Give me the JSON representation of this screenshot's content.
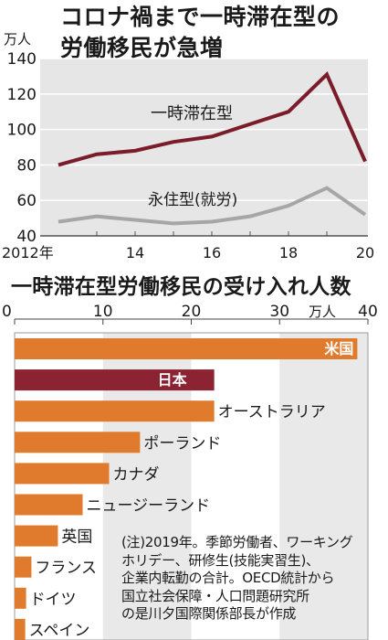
{
  "chart_data": [
    {
      "type": "line",
      "title": "コロナ禍まで一時滞在型の\n労働移民が急増",
      "unit": "万人",
      "x": [
        2012,
        2013,
        2014,
        2015,
        2016,
        2017,
        2018,
        2019,
        2020
      ],
      "xtick_labels": [
        "2012年",
        "14",
        "16",
        "18",
        "20"
      ],
      "ylim": [
        40,
        140
      ],
      "yticks": [
        40,
        60,
        80,
        100,
        120,
        140
      ],
      "series": [
        {
          "name": "一時滞在型",
          "color": "#7a1c2a",
          "values": [
            80,
            86,
            88,
            93,
            96,
            103,
            110,
            131,
            82
          ]
        },
        {
          "name": "永住型(就労)",
          "color": "#a6a6a6",
          "values": [
            48,
            51,
            49,
            47,
            48,
            51,
            57,
            67,
            52
          ]
        }
      ]
    },
    {
      "type": "bar",
      "orientation": "horizontal",
      "title": "一時滞在型労働移民の受け入れ人数",
      "unit": "万人",
      "xlim": [
        0,
        40
      ],
      "xticks": [
        0,
        10,
        20,
        30,
        40
      ],
      "categories": [
        "米国",
        "日本",
        "オーストラリア",
        "ポーランド",
        "カナダ",
        "ニュージーランド",
        "英国",
        "フランス",
        "ドイツ",
        "スペイン"
      ],
      "values": [
        38.8,
        22.6,
        22.6,
        14.2,
        10.7,
        7.7,
        4.9,
        1.9,
        1.3,
        1.2
      ],
      "colors": {
        "default": "#e07a2c",
        "highlight": "#8b2332"
      }
    }
  ],
  "note": "(注)2019年。季節労働者、ワーキング\nホリデー、研修生(技能実習生)、\n企業内転勤の合計。OECD統計から\n国立社会保障・人口問題研究所\nの是川夕国際関係部長が作成"
}
